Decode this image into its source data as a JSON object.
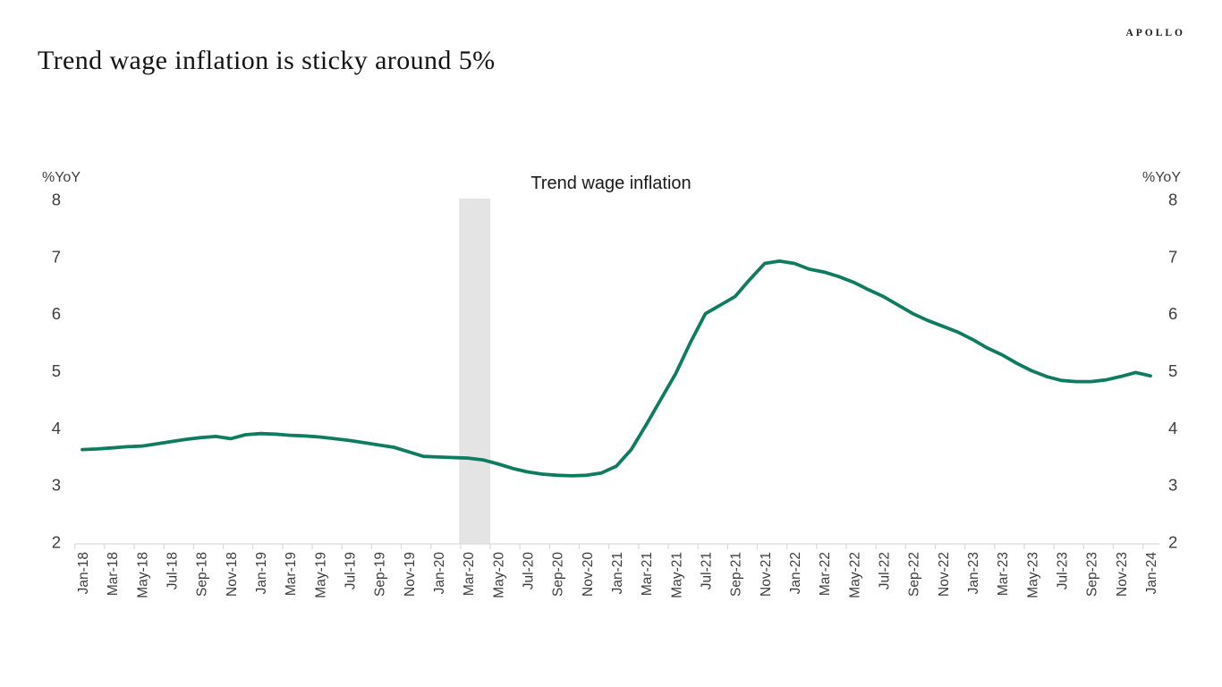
{
  "page": {
    "title": "Trend wage inflation is sticky around 5%",
    "brand": "APOLLO"
  },
  "chart_data": {
    "type": "line",
    "title": "Trend wage inflation",
    "ylabel_left": "%YoY",
    "ylabel_right": "%YoY",
    "ylim": [
      2,
      8
    ],
    "y_ticks": [
      8,
      7,
      6,
      5,
      4,
      3,
      2
    ],
    "grid": false,
    "legend_position": "title-above-plot",
    "x_tick_labels": [
      "Jan-18",
      "Mar-18",
      "May-18",
      "Jul-18",
      "Sep-18",
      "Nov-18",
      "Jan-19",
      "Mar-19",
      "May-19",
      "Jul-19",
      "Sep-19",
      "Nov-19",
      "Jan-20",
      "Mar-20",
      "May-20",
      "Jul-20",
      "Sep-20",
      "Nov-20",
      "Jan-21",
      "Mar-21",
      "May-21",
      "Jul-21",
      "Sep-21",
      "Nov-21",
      "Jan-22",
      "Mar-22",
      "May-22",
      "Jul-22",
      "Sep-22",
      "Nov-22",
      "Jan-23",
      "Mar-23",
      "May-23",
      "Jul-23",
      "Sep-23",
      "Nov-23",
      "Jan-24"
    ],
    "x_months": [
      "Jan-18",
      "Feb-18",
      "Mar-18",
      "Apr-18",
      "May-18",
      "Jun-18",
      "Jul-18",
      "Aug-18",
      "Sep-18",
      "Oct-18",
      "Nov-18",
      "Dec-18",
      "Jan-19",
      "Feb-19",
      "Mar-19",
      "Apr-19",
      "May-19",
      "Jun-19",
      "Jul-19",
      "Aug-19",
      "Sep-19",
      "Oct-19",
      "Nov-19",
      "Dec-19",
      "Jan-20",
      "Feb-20",
      "Mar-20",
      "Apr-20",
      "May-20",
      "Jun-20",
      "Jul-20",
      "Aug-20",
      "Sep-20",
      "Oct-20",
      "Nov-20",
      "Dec-20",
      "Jan-21",
      "Feb-21",
      "Mar-21",
      "Apr-21",
      "May-21",
      "Jun-21",
      "Jul-21",
      "Aug-21",
      "Sep-21",
      "Oct-21",
      "Nov-21",
      "Dec-21",
      "Jan-22",
      "Feb-22",
      "Mar-22",
      "Apr-22",
      "May-22",
      "Jun-22",
      "Jul-22",
      "Aug-22",
      "Sep-22",
      "Oct-22",
      "Nov-22",
      "Dec-22",
      "Jan-23",
      "Feb-23",
      "Mar-23",
      "Apr-23",
      "May-23",
      "Jun-23",
      "Jul-23",
      "Aug-23",
      "Sep-23",
      "Oct-23",
      "Nov-23",
      "Dec-23",
      "Jan-24"
    ],
    "series": [
      {
        "name": "Trend wage inflation",
        "color": "#0f7c62",
        "values": [
          3.62,
          3.63,
          3.65,
          3.67,
          3.68,
          3.72,
          3.76,
          3.8,
          3.83,
          3.85,
          3.81,
          3.88,
          3.9,
          3.89,
          3.87,
          3.86,
          3.84,
          3.81,
          3.78,
          3.74,
          3.7,
          3.66,
          3.58,
          3.5,
          3.49,
          3.48,
          3.47,
          3.44,
          3.37,
          3.29,
          3.23,
          3.19,
          3.17,
          3.16,
          3.17,
          3.21,
          3.33,
          3.62,
          4.05,
          4.5,
          4.95,
          5.5,
          6.0,
          6.15,
          6.3,
          6.6,
          6.88,
          6.92,
          6.88,
          6.78,
          6.73,
          6.65,
          6.55,
          6.42,
          6.3,
          6.15,
          6.0,
          5.88,
          5.78,
          5.68,
          5.55,
          5.4,
          5.28,
          5.13,
          5.0,
          4.9,
          4.83,
          4.81,
          4.81,
          4.84,
          4.9,
          4.97,
          4.91
        ]
      }
    ],
    "shaded_band": {
      "x_from_month_index": 25.4,
      "x_to_month_index": 27.5,
      "color": "#e4e4e4"
    },
    "axis_color": "#d9d9d9",
    "tick_text_color": "#3d3d3d"
  }
}
